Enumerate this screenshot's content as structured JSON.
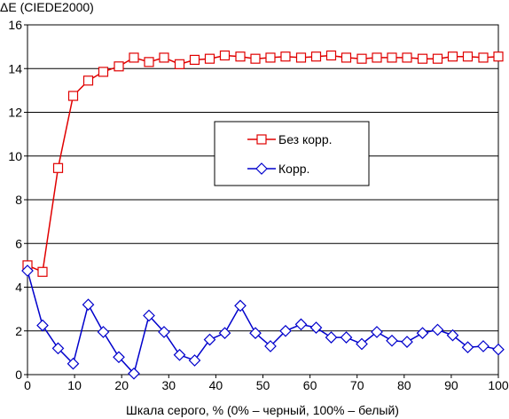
{
  "chart_data": {
    "type": "line",
    "ylabel": "ΔE (CIEDE2000)",
    "xlabel": "Шкала серого, % (0% – черный, 100% – белый)",
    "xlim": [
      0,
      100
    ],
    "ylim": [
      0,
      16
    ],
    "xticks": [
      0,
      10,
      20,
      30,
      40,
      50,
      60,
      70,
      80,
      90,
      100
    ],
    "yticks": [
      0,
      2,
      4,
      6,
      8,
      10,
      12,
      14,
      16
    ],
    "grid": "horizontal",
    "legend": "center-right",
    "x": [
      0,
      3.2,
      6.5,
      9.7,
      12.9,
      16.1,
      19.4,
      22.6,
      25.8,
      29.0,
      32.3,
      35.5,
      38.7,
      41.9,
      45.2,
      48.4,
      51.6,
      54.8,
      58.1,
      61.3,
      64.5,
      67.7,
      71.0,
      74.2,
      77.4,
      80.6,
      83.9,
      87.1,
      90.3,
      93.5,
      96.8,
      100
    ],
    "series": [
      {
        "name": "Без корр.",
        "color": "#e00000",
        "marker": "square",
        "values": [
          5.0,
          4.7,
          9.45,
          12.75,
          13.45,
          13.85,
          14.1,
          14.5,
          14.3,
          14.5,
          14.2,
          14.4,
          14.45,
          14.6,
          14.55,
          14.45,
          14.5,
          14.55,
          14.5,
          14.55,
          14.6,
          14.5,
          14.45,
          14.5,
          14.5,
          14.5,
          14.45,
          14.45,
          14.55,
          14.55,
          14.5,
          14.55
        ]
      },
      {
        "name": "Корр.",
        "color": "#0000cc",
        "marker": "diamond",
        "values": [
          4.75,
          2.25,
          1.2,
          0.5,
          3.2,
          1.95,
          0.8,
          0.05,
          2.7,
          1.95,
          0.9,
          0.65,
          1.6,
          1.9,
          3.15,
          1.9,
          1.3,
          2.0,
          2.3,
          2.15,
          1.7,
          1.7,
          1.4,
          1.95,
          1.55,
          1.5,
          1.9,
          2.05,
          1.8,
          1.25,
          1.3,
          1.15
        ]
      }
    ]
  }
}
